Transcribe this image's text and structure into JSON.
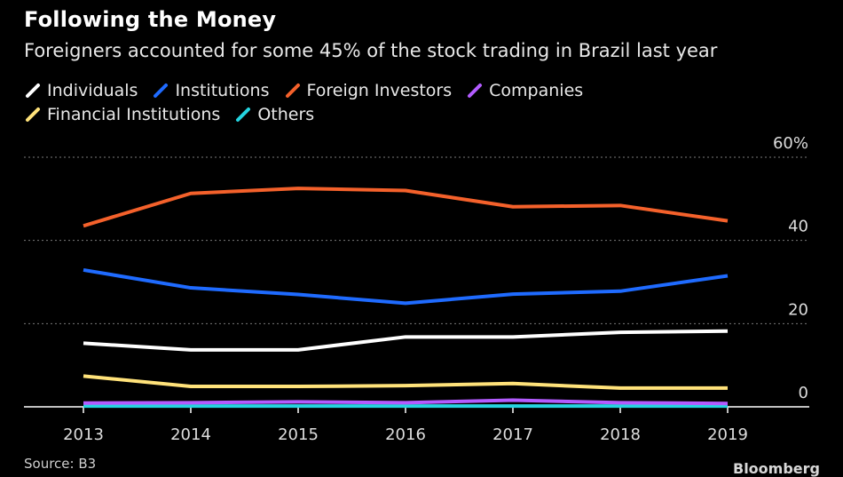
{
  "title": "Following the Money",
  "subtitle": "Foreigners accounted for some 45% of the stock trading in Brazil last year",
  "source": "Source: B3",
  "brand": "Bloomberg",
  "chart_data": {
    "type": "line",
    "x": [
      "2013",
      "2014",
      "2015",
      "2016",
      "2017",
      "2018",
      "2019"
    ],
    "ylim": [
      0,
      60
    ],
    "yticks": [
      {
        "value": 0,
        "label": "0"
      },
      {
        "value": 20,
        "label": "20"
      },
      {
        "value": 40,
        "label": "40"
      },
      {
        "value": 60,
        "label": "60%"
      }
    ],
    "grid": true,
    "legend_position": "top-left",
    "series": [
      {
        "name": "Individuals",
        "color": "#ffffff",
        "values": [
          15.3,
          13.7,
          13.7,
          16.8,
          16.8,
          17.9,
          18.2
        ]
      },
      {
        "name": "Institutions",
        "color": "#1f6bff",
        "values": [
          32.9,
          28.6,
          27.0,
          24.9,
          27.1,
          27.8,
          31.5
        ]
      },
      {
        "name": "Foreign Investors",
        "color": "#f4612b",
        "values": [
          43.5,
          51.3,
          52.5,
          52.0,
          48.1,
          48.4,
          44.7
        ]
      },
      {
        "name": "Companies",
        "color": "#b35cff",
        "values": [
          0.9,
          1.0,
          1.2,
          1.0,
          1.6,
          1.0,
          0.8
        ]
      },
      {
        "name": "Financial Institutions",
        "color": "#ffe27a",
        "values": [
          7.4,
          4.9,
          4.9,
          5.1,
          5.6,
          4.5,
          4.5
        ]
      },
      {
        "name": "Others",
        "color": "#24d4e0",
        "values": [
          0.2,
          0.2,
          0.2,
          0.2,
          0.2,
          0.2,
          0.2
        ]
      }
    ]
  }
}
